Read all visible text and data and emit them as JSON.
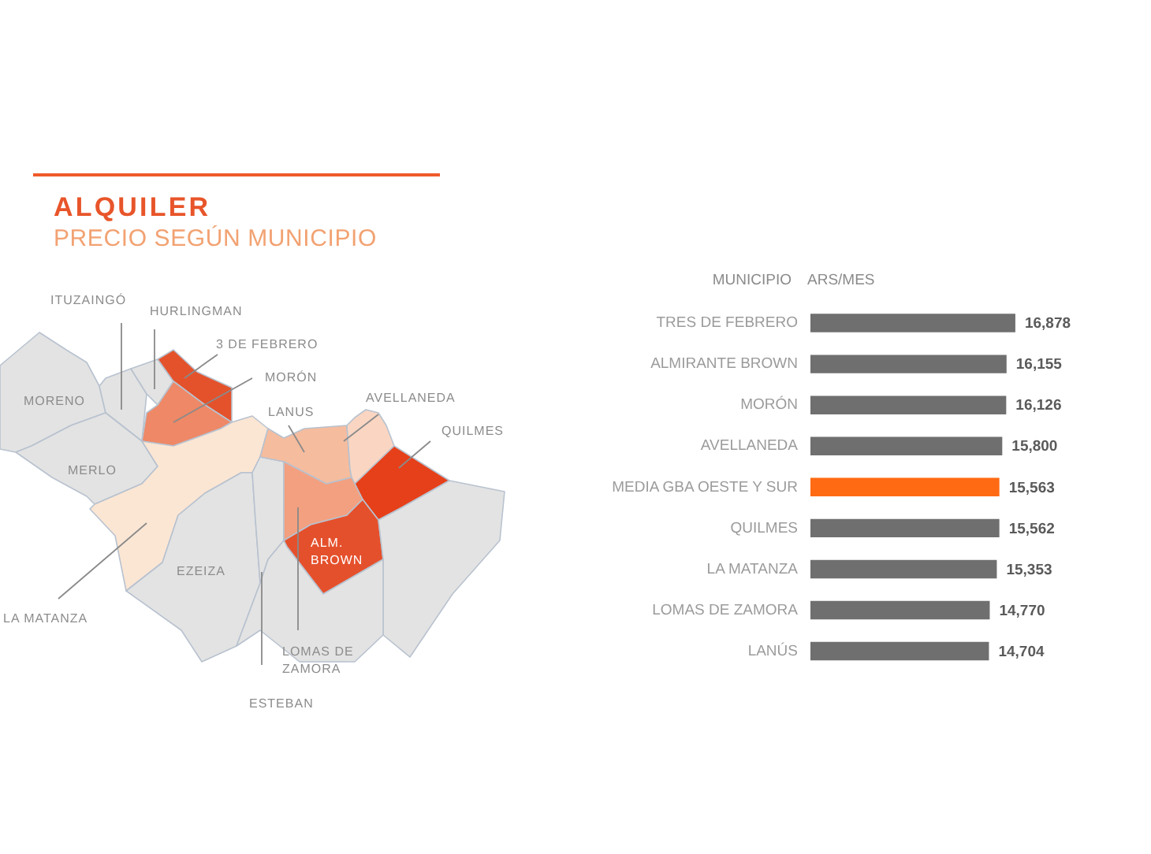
{
  "chart_data": [
    {
      "type": "other",
      "title": "ALQUILER",
      "subtitle": "PRECIO SEGÚN MUNICIPIO",
      "annotations": [
        "ITUZAINGÓ",
        "HURLINGMAN",
        "3 DE FEBRERO",
        "MORÓN",
        "MORENO",
        "AVELLANEDA",
        "LANUS",
        "QUILMES",
        "MERLO",
        "EZEIZA",
        "ALM. BROWN",
        "LA MATANZA",
        "LOMAS DE ZAMORA",
        "ESTEBAN"
      ]
    },
    {
      "type": "bar",
      "orientation": "horizontal",
      "ylabel": "MUNICIPIO",
      "xlabel": "ARS/MES",
      "categories": [
        "TRES DE FEBRERO",
        "ALMIRANTE BROWN",
        "MORÓN",
        "AVELLANEDA",
        "MEDIA GBA OESTE Y SUR",
        "QUILMES",
        "LA MATANZA",
        "LOMAS DE ZAMORA",
        "LANÚS"
      ],
      "values": [
        16878,
        16155,
        16126,
        15800,
        15563,
        15562,
        15353,
        14770,
        14704
      ],
      "colors": [
        "#6f6f6f",
        "#6f6f6f",
        "#6f6f6f",
        "#6f6f6f",
        "#ff6a13",
        "#6f6f6f",
        "#6f6f6f",
        "#6f6f6f",
        "#6f6f6f"
      ],
      "value_labels": [
        "16,878",
        "16,155",
        "16,126",
        "15,800",
        "15,563",
        "15,562",
        "15,353",
        "14,770",
        "14,704"
      ],
      "tick_labels": "y"
    }
  ]
}
